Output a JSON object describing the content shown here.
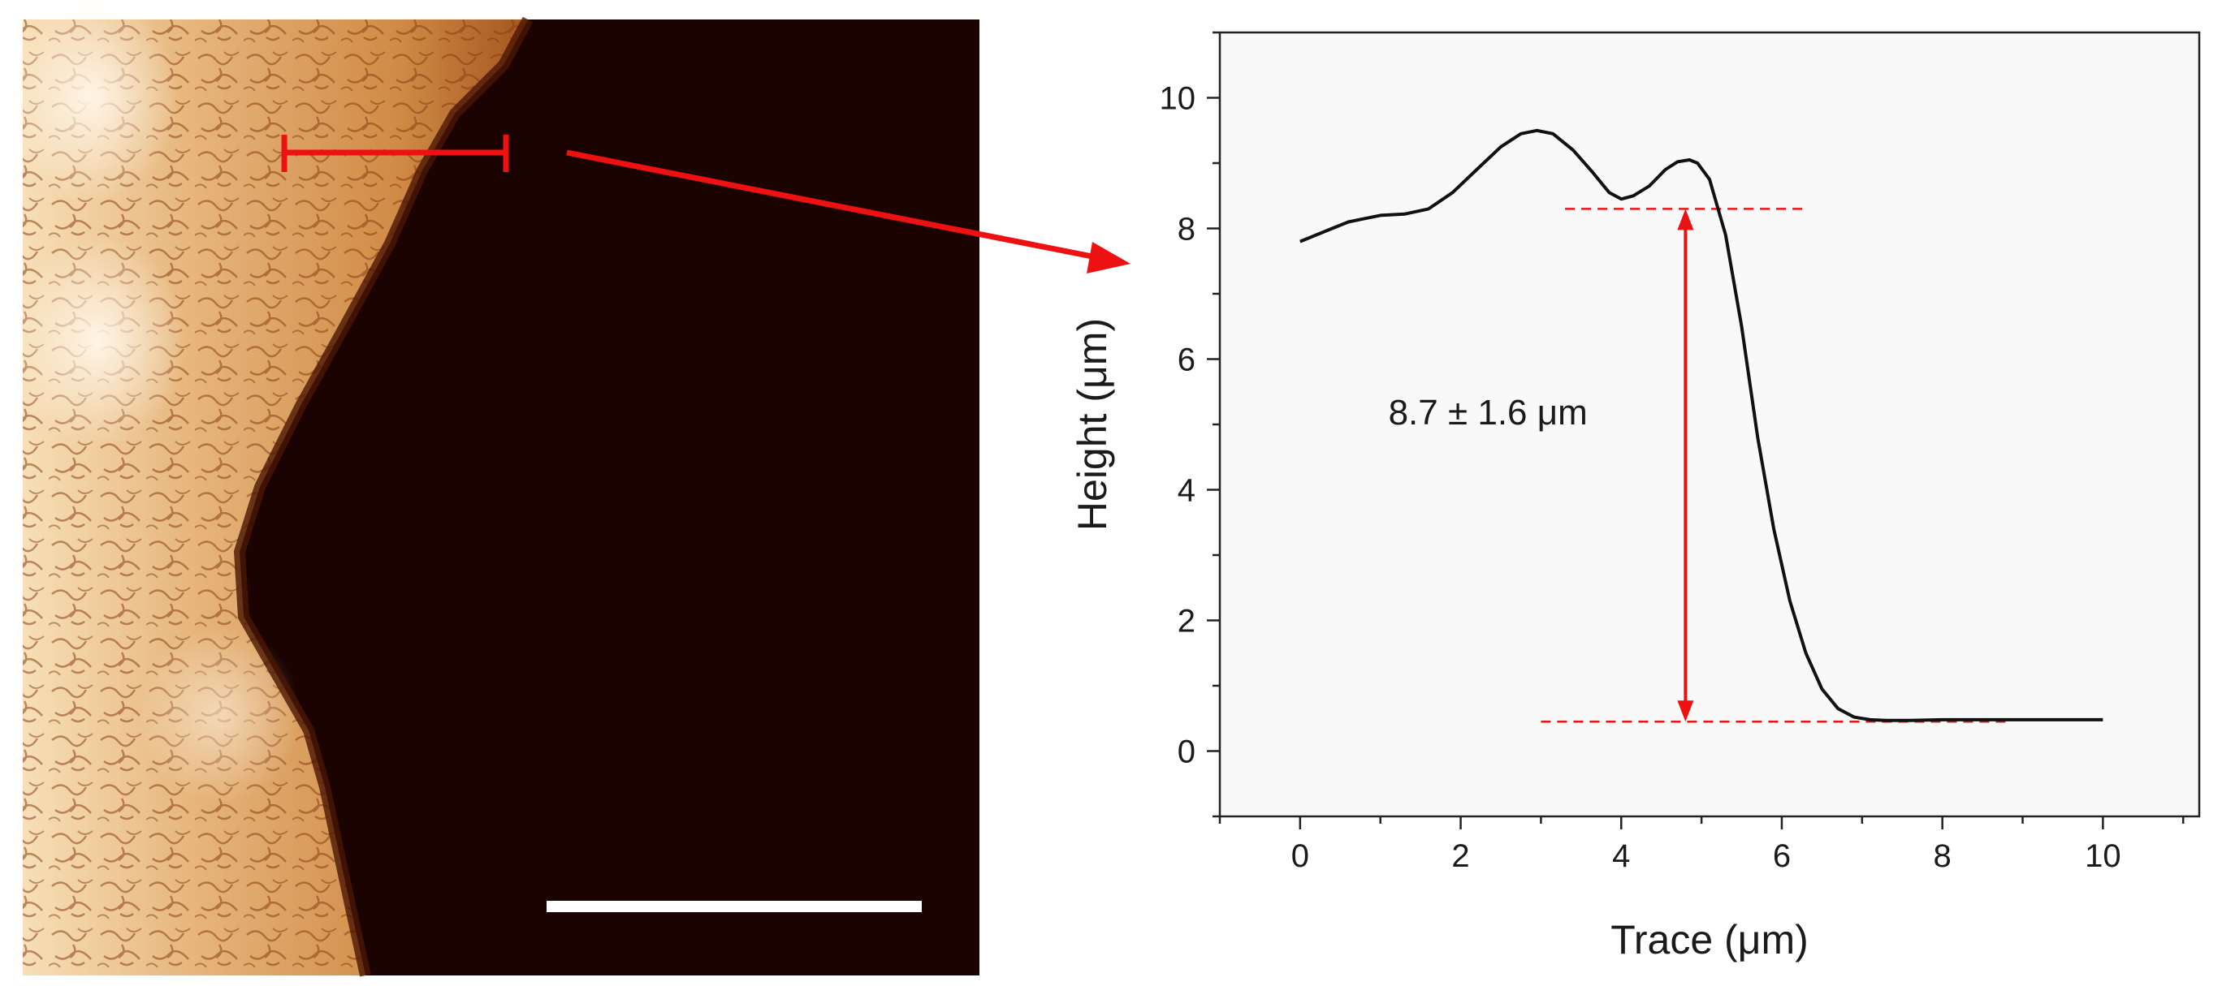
{
  "colors": {
    "afm_dark": "#1a0300",
    "afm_mid": "#c27a35",
    "afm_light": "#f6dcb2",
    "afm_highlight": "#fff6e8",
    "marker": "#ee1111",
    "scale_bar": "#ffffff",
    "plot_bg": "#f9f9f9",
    "curve": "#111111"
  },
  "afm_image": {
    "description_icon": "afm-topography-image",
    "profile_marker_icon": "profile-line-marker",
    "arrow_icon": "pointer-arrow",
    "scale_bar_icon": "scale-bar"
  },
  "chart_data": {
    "type": "line",
    "title": "",
    "xlabel": "Trace (μm)",
    "ylabel": "Height (μm)",
    "xlim": [
      -1.0,
      11.2
    ],
    "ylim": [
      -1.0,
      11.0
    ],
    "xticks": [
      0,
      2,
      4,
      6,
      8,
      10
    ],
    "yticks": [
      0,
      2,
      4,
      6,
      8,
      10
    ],
    "xtick_labels": [
      "0",
      "2",
      "4",
      "6",
      "8",
      "10"
    ],
    "ytick_labels": [
      "0",
      "2",
      "4",
      "6",
      "8",
      "10"
    ],
    "series": [
      {
        "name": "height profile",
        "x": [
          0.0,
          0.3,
          0.6,
          0.8,
          1.0,
          1.3,
          1.6,
          1.9,
          2.2,
          2.5,
          2.75,
          2.95,
          3.15,
          3.4,
          3.65,
          3.85,
          4.0,
          4.15,
          4.35,
          4.55,
          4.7,
          4.85,
          4.95,
          5.1,
          5.3,
          5.5,
          5.7,
          5.9,
          6.1,
          6.3,
          6.5,
          6.7,
          6.9,
          7.1,
          7.3,
          7.6,
          8.0,
          8.5,
          9.0,
          9.5,
          10.0
        ],
        "y": [
          7.8,
          7.95,
          8.1,
          8.15,
          8.2,
          8.22,
          8.3,
          8.55,
          8.9,
          9.25,
          9.45,
          9.5,
          9.45,
          9.2,
          8.85,
          8.55,
          8.45,
          8.5,
          8.65,
          8.9,
          9.02,
          9.05,
          9.0,
          8.75,
          7.9,
          6.5,
          4.8,
          3.4,
          2.3,
          1.5,
          0.95,
          0.65,
          0.52,
          0.48,
          0.47,
          0.47,
          0.48,
          0.48,
          0.48,
          0.48,
          0.48
        ]
      }
    ],
    "reference_lines": [
      {
        "name": "upper-reference",
        "y": 8.3,
        "x_start": 3.3,
        "x_end": 6.3
      },
      {
        "name": "lower-reference",
        "y": 0.45,
        "x_start": 3.0,
        "x_end": 8.8
      }
    ],
    "annotations": [
      {
        "name": "step-height",
        "text": "8.7 ± 1.6 μm",
        "x": 4.8,
        "y_from": 8.3,
        "y_to": 0.45,
        "label_x": 1.1,
        "label_y": 5.0
      }
    ]
  }
}
